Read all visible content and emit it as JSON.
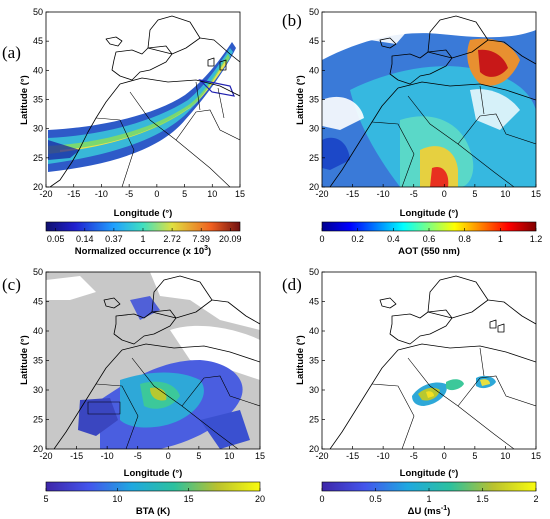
{
  "axes": {
    "x_label": "Longitude (°)",
    "y_label": "Latitude (°)",
    "x_ticks": [
      "-20",
      "-15",
      "-10",
      "-5",
      "0",
      "5",
      "10",
      "15"
    ],
    "y_ticks": [
      "20",
      "25",
      "30",
      "35",
      "40",
      "45",
      "50"
    ],
    "x_range": [
      -20,
      15
    ],
    "y_range": [
      20,
      50
    ]
  },
  "panels": [
    {
      "label": "(a)",
      "colorbar_title": "Normalized occurrence (x 10",
      "colorbar_title_sup": "3",
      "colorbar_title_end": ")",
      "colorbar_ticks": [
        "0.05",
        "0.14",
        "0.37",
        "1",
        "2.72",
        "7.39",
        "20.09"
      ],
      "colormap": "jet-dark"
    },
    {
      "label": "(b)",
      "colorbar_title": "AOT (550 nm)",
      "colorbar_ticks": [
        "0",
        "0.2",
        "0.4",
        "0.6",
        "0.8",
        "1",
        "1.2"
      ],
      "colormap": "jet"
    },
    {
      "label": "(c)",
      "colorbar_title": "BTA (K)",
      "colorbar_ticks": [
        "5",
        "10",
        "15",
        "20"
      ],
      "colormap": "parula"
    },
    {
      "label": "(d)",
      "colorbar_title": "ΔU (ms",
      "colorbar_title_sup": "-1",
      "colorbar_title_end": ")",
      "colorbar_ticks": [
        "0",
        "0.5",
        "1",
        "1.5",
        "2"
      ],
      "colormap": "parula"
    }
  ],
  "colors": {
    "cloud_gray": "#c8c8c8",
    "coast": "#000000"
  }
}
